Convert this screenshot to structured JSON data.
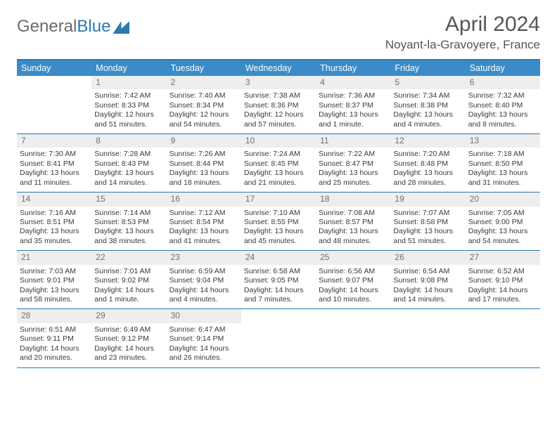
{
  "logo": {
    "part1": "General",
    "part2": "Blue"
  },
  "title": "April 2024",
  "location": "Noyant-la-Gravoyere, France",
  "colors": {
    "header_bg": "#3a8bc8",
    "border": "#2a7ab0",
    "daynum_bg": "#eeeeee",
    "text": "#3a3a3a"
  },
  "daynames": [
    "Sunday",
    "Monday",
    "Tuesday",
    "Wednesday",
    "Thursday",
    "Friday",
    "Saturday"
  ],
  "weeks": [
    [
      {
        "empty": true
      },
      {
        "n": "1",
        "sr": "Sunrise: 7:42 AM",
        "ss": "Sunset: 8:33 PM",
        "dl": "Daylight: 12 hours and 51 minutes."
      },
      {
        "n": "2",
        "sr": "Sunrise: 7:40 AM",
        "ss": "Sunset: 8:34 PM",
        "dl": "Daylight: 12 hours and 54 minutes."
      },
      {
        "n": "3",
        "sr": "Sunrise: 7:38 AM",
        "ss": "Sunset: 8:36 PM",
        "dl": "Daylight: 12 hours and 57 minutes."
      },
      {
        "n": "4",
        "sr": "Sunrise: 7:36 AM",
        "ss": "Sunset: 8:37 PM",
        "dl": "Daylight: 13 hours and 1 minute."
      },
      {
        "n": "5",
        "sr": "Sunrise: 7:34 AM",
        "ss": "Sunset: 8:38 PM",
        "dl": "Daylight: 13 hours and 4 minutes."
      },
      {
        "n": "6",
        "sr": "Sunrise: 7:32 AM",
        "ss": "Sunset: 8:40 PM",
        "dl": "Daylight: 13 hours and 8 minutes."
      }
    ],
    [
      {
        "n": "7",
        "sr": "Sunrise: 7:30 AM",
        "ss": "Sunset: 8:41 PM",
        "dl": "Daylight: 13 hours and 11 minutes."
      },
      {
        "n": "8",
        "sr": "Sunrise: 7:28 AM",
        "ss": "Sunset: 8:43 PM",
        "dl": "Daylight: 13 hours and 14 minutes."
      },
      {
        "n": "9",
        "sr": "Sunrise: 7:26 AM",
        "ss": "Sunset: 8:44 PM",
        "dl": "Daylight: 13 hours and 18 minutes."
      },
      {
        "n": "10",
        "sr": "Sunrise: 7:24 AM",
        "ss": "Sunset: 8:45 PM",
        "dl": "Daylight: 13 hours and 21 minutes."
      },
      {
        "n": "11",
        "sr": "Sunrise: 7:22 AM",
        "ss": "Sunset: 8:47 PM",
        "dl": "Daylight: 13 hours and 25 minutes."
      },
      {
        "n": "12",
        "sr": "Sunrise: 7:20 AM",
        "ss": "Sunset: 8:48 PM",
        "dl": "Daylight: 13 hours and 28 minutes."
      },
      {
        "n": "13",
        "sr": "Sunrise: 7:18 AM",
        "ss": "Sunset: 8:50 PM",
        "dl": "Daylight: 13 hours and 31 minutes."
      }
    ],
    [
      {
        "n": "14",
        "sr": "Sunrise: 7:16 AM",
        "ss": "Sunset: 8:51 PM",
        "dl": "Daylight: 13 hours and 35 minutes."
      },
      {
        "n": "15",
        "sr": "Sunrise: 7:14 AM",
        "ss": "Sunset: 8:53 PM",
        "dl": "Daylight: 13 hours and 38 minutes."
      },
      {
        "n": "16",
        "sr": "Sunrise: 7:12 AM",
        "ss": "Sunset: 8:54 PM",
        "dl": "Daylight: 13 hours and 41 minutes."
      },
      {
        "n": "17",
        "sr": "Sunrise: 7:10 AM",
        "ss": "Sunset: 8:55 PM",
        "dl": "Daylight: 13 hours and 45 minutes."
      },
      {
        "n": "18",
        "sr": "Sunrise: 7:08 AM",
        "ss": "Sunset: 8:57 PM",
        "dl": "Daylight: 13 hours and 48 minutes."
      },
      {
        "n": "19",
        "sr": "Sunrise: 7:07 AM",
        "ss": "Sunset: 8:58 PM",
        "dl": "Daylight: 13 hours and 51 minutes."
      },
      {
        "n": "20",
        "sr": "Sunrise: 7:05 AM",
        "ss": "Sunset: 9:00 PM",
        "dl": "Daylight: 13 hours and 54 minutes."
      }
    ],
    [
      {
        "n": "21",
        "sr": "Sunrise: 7:03 AM",
        "ss": "Sunset: 9:01 PM",
        "dl": "Daylight: 13 hours and 58 minutes."
      },
      {
        "n": "22",
        "sr": "Sunrise: 7:01 AM",
        "ss": "Sunset: 9:02 PM",
        "dl": "Daylight: 14 hours and 1 minute."
      },
      {
        "n": "23",
        "sr": "Sunrise: 6:59 AM",
        "ss": "Sunset: 9:04 PM",
        "dl": "Daylight: 14 hours and 4 minutes."
      },
      {
        "n": "24",
        "sr": "Sunrise: 6:58 AM",
        "ss": "Sunset: 9:05 PM",
        "dl": "Daylight: 14 hours and 7 minutes."
      },
      {
        "n": "25",
        "sr": "Sunrise: 6:56 AM",
        "ss": "Sunset: 9:07 PM",
        "dl": "Daylight: 14 hours and 10 minutes."
      },
      {
        "n": "26",
        "sr": "Sunrise: 6:54 AM",
        "ss": "Sunset: 9:08 PM",
        "dl": "Daylight: 14 hours and 14 minutes."
      },
      {
        "n": "27",
        "sr": "Sunrise: 6:52 AM",
        "ss": "Sunset: 9:10 PM",
        "dl": "Daylight: 14 hours and 17 minutes."
      }
    ],
    [
      {
        "n": "28",
        "sr": "Sunrise: 6:51 AM",
        "ss": "Sunset: 9:11 PM",
        "dl": "Daylight: 14 hours and 20 minutes."
      },
      {
        "n": "29",
        "sr": "Sunrise: 6:49 AM",
        "ss": "Sunset: 9:12 PM",
        "dl": "Daylight: 14 hours and 23 minutes."
      },
      {
        "n": "30",
        "sr": "Sunrise: 6:47 AM",
        "ss": "Sunset: 9:14 PM",
        "dl": "Daylight: 14 hours and 26 minutes."
      },
      {
        "empty": true
      },
      {
        "empty": true
      },
      {
        "empty": true
      },
      {
        "empty": true
      }
    ]
  ]
}
